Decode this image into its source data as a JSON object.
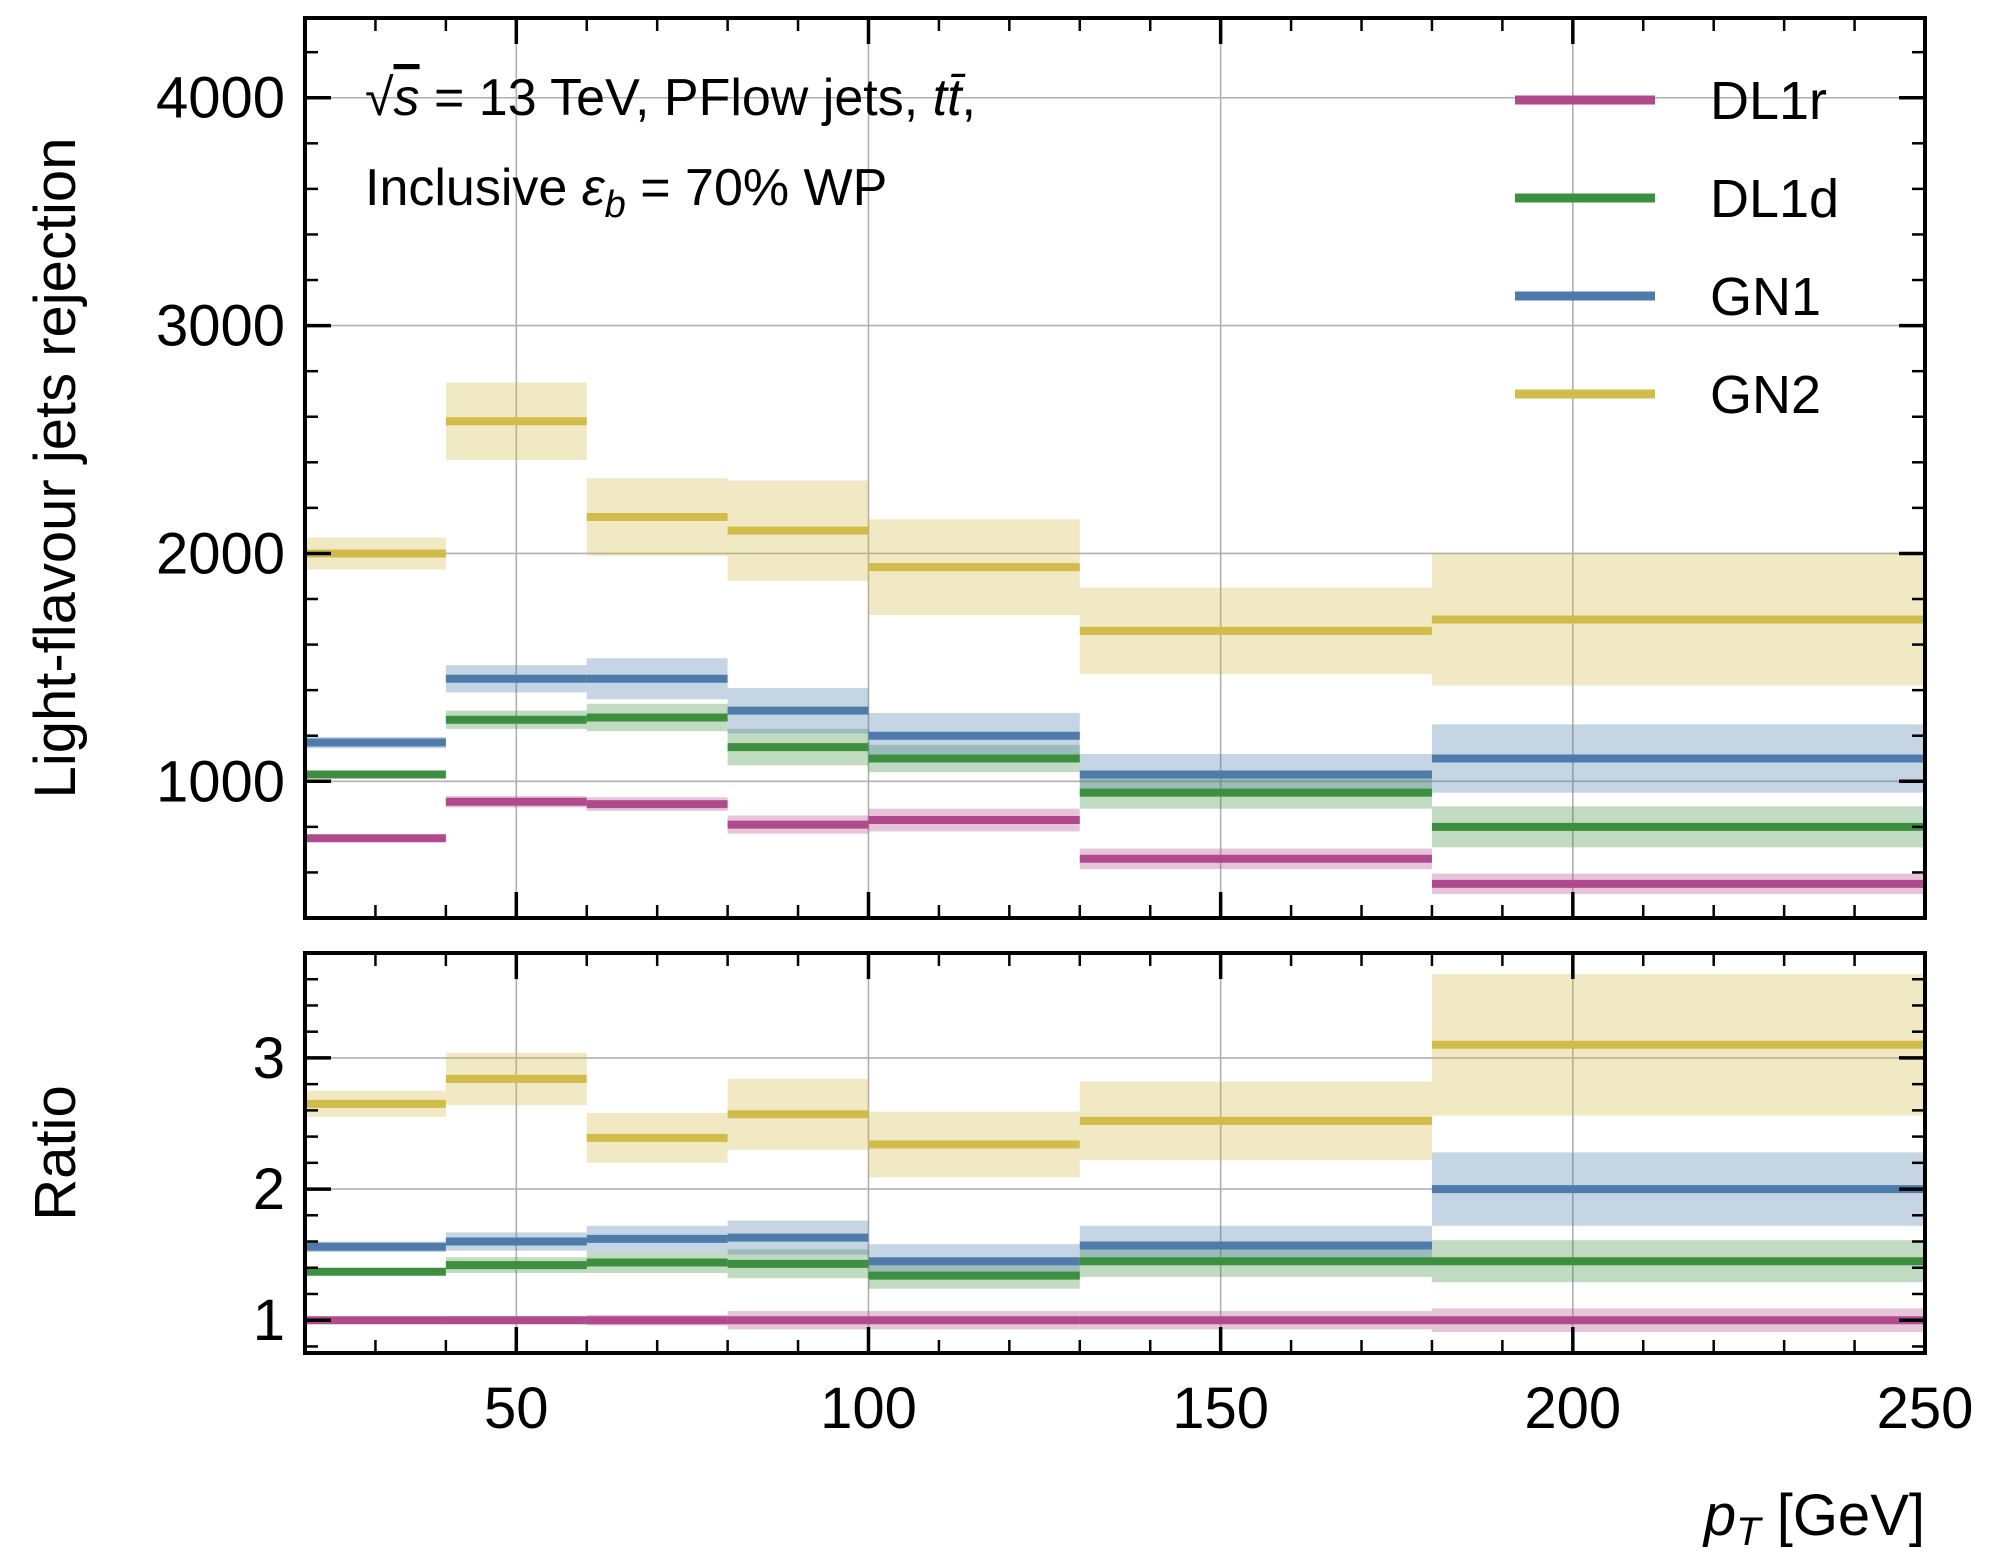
{
  "chart_data": [
    {
      "type": "line",
      "ylabel": "Light-flavour jets rejection",
      "xlim": [
        20,
        250
      ],
      "ylim": [
        400,
        4350
      ],
      "yticks": [
        1000,
        2000,
        3000,
        4000
      ],
      "grid": true,
      "bin_edges": [
        20,
        40,
        60,
        80,
        100,
        130,
        180,
        250
      ],
      "annotation": {
        "line1_sqrt": "√",
        "line1_s": "s",
        "line1_rest": " = 13 TeV, PFlow jets, ",
        "line1_tt": "tt̄",
        "line1_tail": ",",
        "line2_pre": "Inclusive ",
        "line2_eps": "ε",
        "line2_sub": "b",
        "line2_post": " = 70% WP"
      },
      "legend": {
        "placement": "top-right",
        "entries": [
          "DL1r",
          "DL1d",
          "GN1",
          "GN2"
        ]
      },
      "series": [
        {
          "name": "DL1r",
          "color": "#b04a8c",
          "values": [
            750,
            910,
            900,
            810,
            830,
            660,
            550
          ],
          "err": [
            10,
            25,
            30,
            40,
            50,
            45,
            45
          ]
        },
        {
          "name": "DL1d",
          "color": "#3b8f3e",
          "values": [
            1030,
            1270,
            1280,
            1150,
            1100,
            950,
            800
          ],
          "err": [
            15,
            40,
            60,
            80,
            60,
            70,
            90
          ]
        },
        {
          "name": "GN1",
          "color": "#4f7bab",
          "values": [
            1170,
            1450,
            1450,
            1310,
            1200,
            1030,
            1100
          ],
          "err": [
            25,
            60,
            90,
            100,
            100,
            90,
            150
          ]
        },
        {
          "name": "GN2",
          "color": "#d1bc49",
          "values": [
            2000,
            2580,
            2160,
            2100,
            1940,
            1660,
            1710
          ],
          "err": [
            70,
            170,
            170,
            220,
            210,
            190,
            290
          ]
        }
      ]
    },
    {
      "type": "line",
      "ylabel": "Ratio",
      "xlabel_main": "p",
      "xlabel_sub": "T",
      "xlabel_unit": " [GeV]",
      "xlim": [
        20,
        250
      ],
      "ylim": [
        0.75,
        3.8
      ],
      "xticks": [
        50,
        100,
        150,
        200,
        250
      ],
      "yticks": [
        1,
        2,
        3
      ],
      "grid": true,
      "bin_edges": [
        20,
        40,
        60,
        80,
        100,
        130,
        180,
        250
      ],
      "series": [
        {
          "name": "DL1r",
          "color": "#b04a8c",
          "values": [
            1.0,
            1.0,
            1.0,
            1.0,
            1.0,
            1.0,
            1.0
          ],
          "err": [
            0.01,
            0.03,
            0.04,
            0.07,
            0.07,
            0.07,
            0.09
          ]
        },
        {
          "name": "DL1d",
          "color": "#3b8f3e",
          "values": [
            1.37,
            1.42,
            1.44,
            1.43,
            1.34,
            1.45,
            1.45
          ],
          "err": [
            0.02,
            0.06,
            0.08,
            0.11,
            0.1,
            0.12,
            0.16
          ]
        },
        {
          "name": "GN1",
          "color": "#4f7bab",
          "values": [
            1.56,
            1.6,
            1.62,
            1.63,
            1.45,
            1.57,
            2.0
          ],
          "err": [
            0.04,
            0.07,
            0.1,
            0.13,
            0.13,
            0.15,
            0.28
          ]
        },
        {
          "name": "GN2",
          "color": "#d1bc49",
          "values": [
            2.65,
            2.84,
            2.39,
            2.57,
            2.34,
            2.52,
            3.1
          ],
          "err": [
            0.1,
            0.2,
            0.19,
            0.27,
            0.25,
            0.3,
            0.54
          ]
        }
      ]
    }
  ]
}
